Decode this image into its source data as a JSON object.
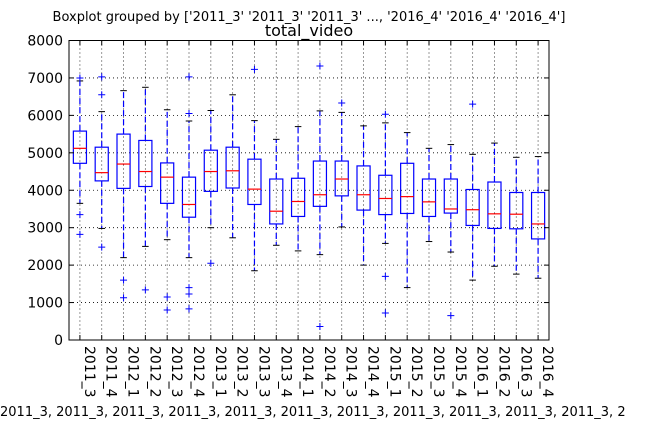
{
  "chart_data": {
    "type": "boxplot",
    "suptitle": "Boxplot grouped by ['2011_3' '2011_3' '2011_3' ..., '2016_4' '2016_4' '2016_4']",
    "title": "total_video",
    "xlabel": "2011_3, 2011_3, 2011_3, 2011_3, 2011_3, 2011_3, 2011_3, 2011_3, 2011_3, 2011_3, 2011_3, 2",
    "ylabel": "",
    "ylim": [
      0,
      8000
    ],
    "yticks": [
      0,
      1000,
      2000,
      3000,
      4000,
      5000,
      6000,
      7000,
      8000
    ],
    "grid": true,
    "categories": [
      "2011_3",
      "2011_4",
      "2012_1",
      "2012_2",
      "2012_3",
      "2012_4",
      "2013_1",
      "2013_2",
      "2013_3",
      "2013_4",
      "2014_1",
      "2014_2",
      "2014_3",
      "2014_4",
      "2015_1",
      "2015_2",
      "2015_3",
      "2015_4",
      "2016_1",
      "2016_2",
      "2016_3",
      "2016_4"
    ],
    "boxes": [
      {
        "whislo": 3650,
        "q1": 4720,
        "med": 5120,
        "q3": 5580,
        "whishi": 6920,
        "fliers": [
          2820,
          3350,
          7000
        ]
      },
      {
        "whislo": 2980,
        "q1": 4250,
        "med": 4470,
        "q3": 5150,
        "whishi": 6100,
        "fliers": [
          2480,
          6550,
          7030
        ]
      },
      {
        "whislo": 2200,
        "q1": 4050,
        "med": 4700,
        "q3": 5500,
        "whishi": 6660,
        "fliers": [
          1130,
          1600
        ]
      },
      {
        "whislo": 2500,
        "q1": 4100,
        "med": 4500,
        "q3": 5330,
        "whishi": 6750,
        "fliers": [
          1340
        ]
      },
      {
        "whislo": 2680,
        "q1": 3650,
        "med": 4350,
        "q3": 4730,
        "whishi": 6150,
        "fliers": [
          800,
          1150
        ]
      },
      {
        "whislo": 2200,
        "q1": 3280,
        "med": 3620,
        "q3": 4350,
        "whishi": 5850,
        "fliers": [
          830,
          1230,
          1400,
          6050,
          7030
        ]
      },
      {
        "whislo": 3000,
        "q1": 3970,
        "med": 4500,
        "q3": 5070,
        "whishi": 6130,
        "fliers": [
          2050
        ]
      },
      {
        "whislo": 2730,
        "q1": 4060,
        "med": 4520,
        "q3": 5150,
        "whishi": 6550,
        "fliers": []
      },
      {
        "whislo": 1850,
        "q1": 3620,
        "med": 4030,
        "q3": 4830,
        "whishi": 5860,
        "fliers": [
          7230
        ]
      },
      {
        "whislo": 2530,
        "q1": 3100,
        "med": 3440,
        "q3": 4300,
        "whishi": 5360,
        "fliers": []
      },
      {
        "whislo": 2380,
        "q1": 3300,
        "med": 3700,
        "q3": 4320,
        "whishi": 5700,
        "fliers": []
      },
      {
        "whislo": 2280,
        "q1": 3570,
        "med": 3880,
        "q3": 4780,
        "whishi": 6120,
        "fliers": [
          360,
          7320
        ]
      },
      {
        "whislo": 3020,
        "q1": 3850,
        "med": 4300,
        "q3": 4780,
        "whishi": 6080,
        "fliers": [
          6330
        ]
      },
      {
        "whislo": 2000,
        "q1": 3470,
        "med": 3880,
        "q3": 4650,
        "whishi": 5720,
        "fliers": []
      },
      {
        "whislo": 2580,
        "q1": 3350,
        "med": 3780,
        "q3": 4400,
        "whishi": 5800,
        "fliers": [
          720,
          1700,
          6030
        ]
      },
      {
        "whislo": 1400,
        "q1": 3380,
        "med": 3830,
        "q3": 4720,
        "whishi": 5540,
        "fliers": []
      },
      {
        "whislo": 2630,
        "q1": 3300,
        "med": 3690,
        "q3": 4300,
        "whishi": 5120,
        "fliers": []
      },
      {
        "whislo": 2350,
        "q1": 3390,
        "med": 3500,
        "q3": 4300,
        "whishi": 5220,
        "fliers": [
          650
        ]
      },
      {
        "whislo": 1600,
        "q1": 3060,
        "med": 3480,
        "q3": 4020,
        "whishi": 4960,
        "fliers": [
          6300
        ]
      },
      {
        "whislo": 1970,
        "q1": 2980,
        "med": 3370,
        "q3": 4220,
        "whishi": 5260,
        "fliers": []
      },
      {
        "whislo": 1760,
        "q1": 2970,
        "med": 3360,
        "q3": 3940,
        "whishi": 4880,
        "fliers": []
      },
      {
        "whislo": 1650,
        "q1": 2700,
        "med": 3100,
        "q3": 3940,
        "whishi": 4900,
        "fliers": []
      }
    ],
    "colors": {
      "box": "#0000ff",
      "median": "#ff0000",
      "flier": "#0000ff",
      "axis": "#000000",
      "grid": "#000000"
    }
  }
}
